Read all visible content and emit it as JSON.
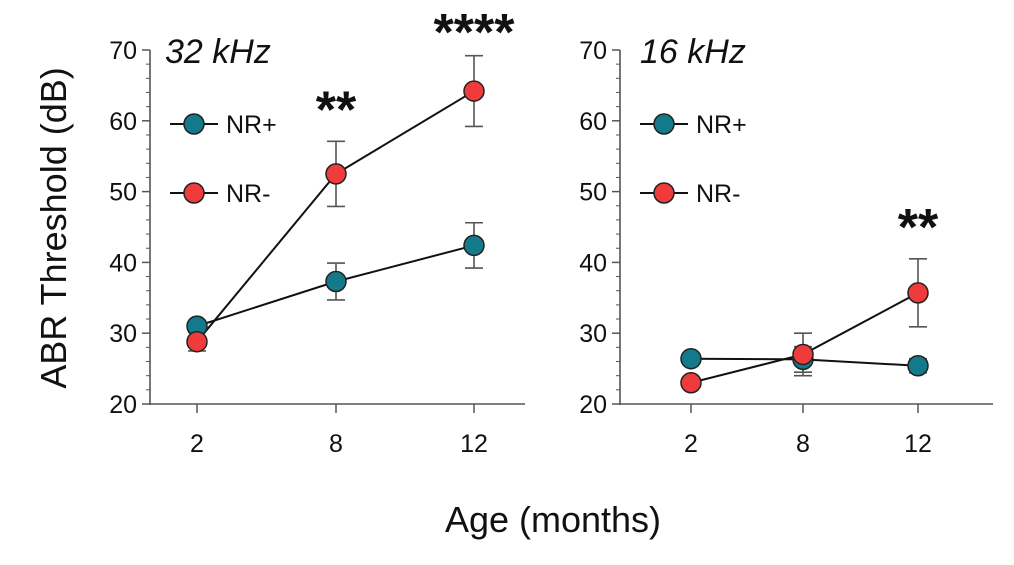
{
  "figure": {
    "ylabel": "ABR Threshold (dB)",
    "xlabel": "Age (months)"
  },
  "chart_data": [
    {
      "type": "line",
      "title": "32 kHz",
      "x": [
        "2",
        "8",
        "12"
      ],
      "ylim": [
        20,
        70
      ],
      "yticks": [
        "20",
        "30",
        "40",
        "50",
        "60",
        "70"
      ],
      "grid": false,
      "legend": "top-left",
      "series": [
        {
          "name": "NR+",
          "color": "#137a8c",
          "values": [
            31.0,
            37.3,
            42.4
          ],
          "errors": [
            0.6,
            2.6,
            3.2
          ]
        },
        {
          "name": "NR-",
          "color": "#ef3b3b",
          "values": [
            28.8,
            52.5,
            64.2
          ],
          "errors": [
            1.3,
            4.6,
            5.0
          ]
        }
      ],
      "annotations": [
        {
          "x": "8",
          "text": "**"
        },
        {
          "x": "12",
          "text": "****"
        }
      ]
    },
    {
      "type": "line",
      "title": "16 kHz",
      "x": [
        "2",
        "8",
        "12"
      ],
      "ylim": [
        20,
        70
      ],
      "yticks": [
        "20",
        "30",
        "40",
        "50",
        "60",
        "70"
      ],
      "grid": false,
      "legend": "top-left",
      "series": [
        {
          "name": "NR+",
          "color": "#137a8c",
          "values": [
            26.4,
            26.3,
            25.4
          ],
          "errors": [
            0.4,
            1.8,
            1.0
          ]
        },
        {
          "name": "NR-",
          "color": "#ef3b3b",
          "values": [
            23.0,
            27.0,
            35.7
          ],
          "errors": [
            0.5,
            3.0,
            4.8
          ]
        }
      ],
      "annotations": [
        {
          "x": "12",
          "text": "**"
        }
      ]
    }
  ]
}
